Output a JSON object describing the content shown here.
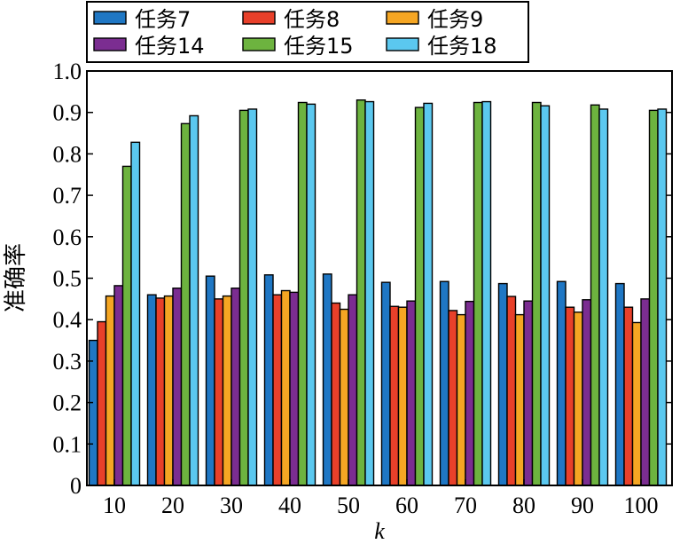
{
  "chart_data": {
    "type": "bar",
    "title": "",
    "xlabel": "k",
    "ylabel": "准确率",
    "categories": [
      "10",
      "20",
      "30",
      "40",
      "50",
      "60",
      "70",
      "80",
      "90",
      "100"
    ],
    "ylim": [
      0,
      1.0
    ],
    "yticks": [
      "0",
      "0.1",
      "0.2",
      "0.3",
      "0.4",
      "0.5",
      "0.6",
      "0.7",
      "0.8",
      "0.9",
      "1.0"
    ],
    "grid": false,
    "legend_position": "top",
    "series": [
      {
        "name": "任务7",
        "color": "#1f77c4",
        "values": [
          0.35,
          0.46,
          0.505,
          0.508,
          0.51,
          0.49,
          0.492,
          0.487,
          0.492,
          0.487
        ]
      },
      {
        "name": "任务8",
        "color": "#e8402a",
        "values": [
          0.395,
          0.452,
          0.45,
          0.46,
          0.44,
          0.432,
          0.422,
          0.456,
          0.43,
          0.43
        ]
      },
      {
        "name": "任务9",
        "color": "#f5a623",
        "values": [
          0.457,
          0.457,
          0.457,
          0.47,
          0.425,
          0.43,
          0.412,
          0.412,
          0.418,
          0.393
        ]
      },
      {
        "name": "任务14",
        "color": "#7b2d91",
        "values": [
          0.482,
          0.476,
          0.476,
          0.466,
          0.46,
          0.445,
          0.444,
          0.445,
          0.448,
          0.45
        ]
      },
      {
        "name": "任务15",
        "color": "#6db33f",
        "values": [
          0.77,
          0.873,
          0.905,
          0.924,
          0.93,
          0.912,
          0.924,
          0.924,
          0.918,
          0.905
        ]
      },
      {
        "name": "任务18",
        "color": "#5bc8ef",
        "values": [
          0.828,
          0.892,
          0.908,
          0.92,
          0.926,
          0.922,
          0.926,
          0.916,
          0.908,
          0.908
        ]
      }
    ]
  }
}
